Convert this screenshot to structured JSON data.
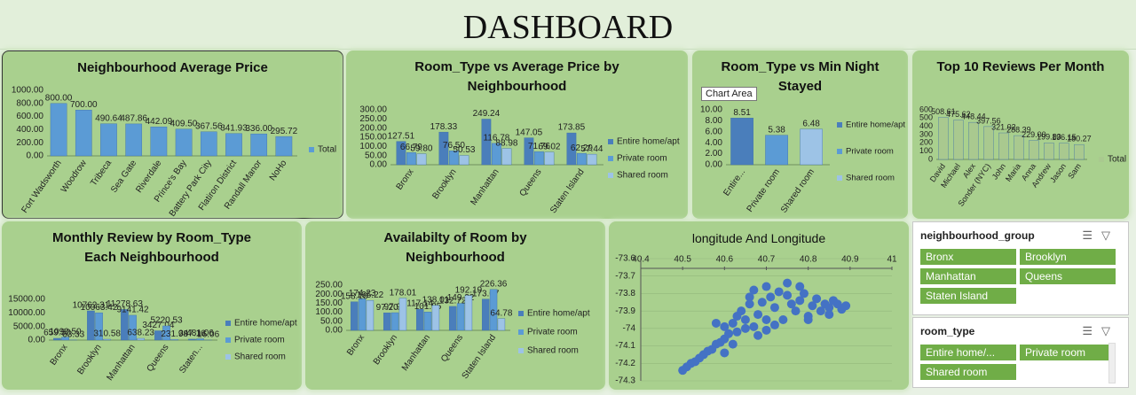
{
  "title": "DASHBOARD",
  "chart_data": [
    {
      "type": "bar",
      "title": "Neighbourhood Average Price",
      "categories": [
        "Fort Wadsworth",
        "Woodrow",
        "Tribeca",
        "Sea Gate",
        "Riverdale",
        "Prince's Bay",
        "Battery Park City",
        "Flatiron District",
        "Randall Manor",
        "NoHo"
      ],
      "series": [
        {
          "name": "Total",
          "color": "#5b9bd5",
          "values": [
            800,
            700,
            490.64,
            487.86,
            442.09,
            409.5,
            367.56,
            341.93,
            336,
            295.72
          ],
          "value_labels": [
            "800.00",
            "700.00",
            "490.64",
            "487.86",
            "442.09",
            "409.50",
            "367.56",
            "341.93",
            "336.00",
            "295.72"
          ]
        }
      ],
      "ylim": [
        0,
        1000
      ],
      "yticks": [
        {
          "value": 0,
          "label": "0.00"
        },
        {
          "value": 200,
          "label": "200.00"
        },
        {
          "value": 400,
          "label": "400.00"
        },
        {
          "value": 600,
          "label": "600.00"
        },
        {
          "value": 800,
          "label": "800.00"
        },
        {
          "value": 1000,
          "label": "1000.00"
        }
      ],
      "grid": false
    },
    {
      "type": "bar",
      "title": "Room_Type vs Average Price by Neighbourhood",
      "categories": [
        "Bronx",
        "Brooklyn",
        "Manhattan",
        "Queens",
        "Staten Island"
      ],
      "series": [
        {
          "name": "Entire home/apt",
          "color": "#4a7ebb",
          "values": [
            127.51,
            178.33,
            249.24,
            147.05,
            173.85
          ],
          "value_labels": [
            "127.51",
            "178.33",
            "249.24",
            "147.05",
            "173.85"
          ]
        },
        {
          "name": "Private room",
          "color": "#5b9bd5",
          "values": [
            66.79,
            76.5,
            116.78,
            71.76,
            62.29
          ],
          "value_labels": [
            "66.79",
            "76.50",
            "116.78",
            "71.76",
            "62.29"
          ]
        },
        {
          "name": "Shared room",
          "color": "#9dc3e6",
          "values": [
            59.8,
            50.53,
            88.98,
            69.02,
            57.44
          ],
          "value_labels": [
            "59.80",
            "50.53",
            "88.98",
            "69.02",
            "57.44"
          ]
        }
      ],
      "ylim": [
        0,
        300
      ],
      "yticks": [
        {
          "value": 0,
          "label": "0.00"
        },
        {
          "value": 50,
          "label": "50.00"
        },
        {
          "value": 100,
          "label": "100.00"
        },
        {
          "value": 150,
          "label": "150.00"
        },
        {
          "value": 200,
          "label": "200.00"
        },
        {
          "value": 250,
          "label": "250.00"
        },
        {
          "value": 300,
          "label": "300.00"
        }
      ],
      "grid": false
    },
    {
      "type": "bar",
      "title": "Room_Type vs Min Night Stayed",
      "tooltip": "Chart Area",
      "categories": [
        "Entire...",
        "Private room",
        "Shared room"
      ],
      "series": [
        {
          "colors": [
            "#4a7ebb",
            "#5b9bd5",
            "#9dc3e6"
          ],
          "values": [
            8.51,
            5.38,
            6.48
          ],
          "value_labels": [
            "8.51",
            "5.38",
            "6.48"
          ]
        }
      ],
      "legend": [
        "Entire home/apt",
        "Private room",
        "Shared room"
      ],
      "ylim": [
        0,
        10
      ],
      "yticks": [
        {
          "value": 0,
          "label": "0.00"
        },
        {
          "value": 2,
          "label": "2.00"
        },
        {
          "value": 4,
          "label": "4.00"
        },
        {
          "value": 6,
          "label": "6.00"
        },
        {
          "value": 8,
          "label": "8.00"
        },
        {
          "value": 10,
          "label": "10.00"
        }
      ],
      "grid": false
    },
    {
      "type": "bar",
      "title": "Top 10 Reviews Per Month",
      "categories": [
        "David",
        "Michael",
        "Alex",
        "Sonder (NYC)",
        "John",
        "Maria",
        "Anna",
        "Andrew",
        "Jason",
        "Sam"
      ],
      "series": [
        {
          "name": "Total",
          "color": "#a9c98f",
          "values": [
            508.61,
            475.62,
            448.44,
            397.56,
            321.02,
            288.39,
            229,
            199.83,
            196.15,
            180.27
          ],
          "value_labels": [
            "508.61",
            "475.62",
            "448.44",
            "397.56",
            "321.02",
            "288.39",
            "229.00",
            "199.83",
            "196.15",
            "180.27"
          ]
        }
      ],
      "ylim": [
        0,
        600
      ],
      "yticks": [
        0,
        100,
        200,
        300,
        400,
        500,
        600
      ],
      "grid": false
    },
    {
      "type": "bar",
      "title": "Monthly Review by Room_Type Each Neighbourhood",
      "categories": [
        "Bronx",
        "Brooklyn",
        "Manhattan",
        "Queens",
        "Staten..."
      ],
      "series": [
        {
          "name": "Entire home/apt",
          "color": "#4a7ebb",
          "values": [
            659.5,
            10762.31,
            11278.63,
            3427.04,
            347.16
          ],
          "value_labels": [
            "659.50",
            "10762.31",
            "11278.63",
            "3427.04",
            "347.16"
          ]
        },
        {
          "name": "Private room",
          "color": "#5b9bd5",
          "values": [
            1090.5,
            10063.42,
            9141.42,
            5220.53,
            481.06
          ],
          "value_labels": [
            "1090.50",
            "10063.42",
            "9141.42",
            "5220.53",
            "481.06"
          ]
        },
        {
          "name": "Shared room",
          "color": "#9dc3e6",
          "values": [
            63.33,
            310.58,
            638.23,
            231.98,
            16.06
          ],
          "value_labels": [
            "63.33",
            "310.58",
            "638.23",
            "231.98",
            "16.06"
          ]
        }
      ],
      "ylim": [
        0,
        15000
      ],
      "yticks": [
        {
          "value": 0,
          "label": "0.00"
        },
        {
          "value": 5000,
          "label": "5000.00"
        },
        {
          "value": 10000,
          "label": "10000.00"
        },
        {
          "value": 15000,
          "label": "15000.00"
        }
      ],
      "grid": false
    },
    {
      "type": "bar",
      "title": "Availabilty of Room by Neighbourhood",
      "categories": [
        "Bronx",
        "Brooklyn",
        "Manhattan",
        "Queens",
        "Staten Island"
      ],
      "series": [
        {
          "name": "Entire home/apt",
          "color": "#4a7ebb",
          "values": [
            158.1,
            97.2,
            117.14,
            132.72,
            173.07
          ],
          "value_labels": [
            "158.10",
            "97.20",
            "117.14",
            "132.72",
            "173.07"
          ]
        },
        {
          "name": "Private room",
          "color": "#5b9bd5",
          "values": [
            174.23,
            97.92,
            101.85,
            149.22,
            226.36
          ],
          "value_labels": [
            "174.23",
            "97.92",
            "101.85",
            "149.22",
            "226.36"
          ]
        },
        {
          "name": "Shared room",
          "color": "#9dc3e6",
          "values": [
            165.22,
            178.01,
            138.01,
            192.19,
            64.78
          ],
          "value_labels": [
            "165.22",
            "178.01",
            "138.01",
            "192.19",
            "64.78"
          ]
        }
      ],
      "ylim": [
        0,
        250
      ],
      "yticks": [
        {
          "value": 0,
          "label": "0.00"
        },
        {
          "value": 50,
          "label": "50.00"
        },
        {
          "value": 100,
          "label": "100.00"
        },
        {
          "value": 150,
          "label": "150.00"
        },
        {
          "value": 200,
          "label": "200.00"
        },
        {
          "value": 250,
          "label": "250.00"
        }
      ],
      "grid": false
    },
    {
      "type": "scatter",
      "title": "longitude And Longitude",
      "color": "#4472c4",
      "x": [
        40.5,
        40.51,
        40.52,
        40.53,
        40.54,
        40.55,
        40.56,
        40.57,
        40.58,
        40.59,
        40.6,
        40.6,
        40.61,
        40.62,
        40.63,
        40.63,
        40.64,
        40.65,
        40.66,
        40.67,
        40.67,
        40.68,
        40.69,
        40.7,
        40.7,
        40.71,
        40.72,
        40.73,
        40.74,
        40.75,
        40.76,
        40.77,
        40.78,
        40.79,
        40.8,
        40.81,
        40.82,
        40.83,
        40.84,
        40.85,
        40.86,
        40.87,
        40.88,
        40.89,
        40.6,
        40.65,
        40.7,
        40.75,
        40.8,
        40.72,
        40.68,
        40.62,
        40.58,
        40.85,
        40.78,
        40.66
      ],
      "y": [
        -74.24,
        -74.22,
        -74.2,
        -74.19,
        -74.17,
        -74.15,
        -74.13,
        -74.12,
        -74.09,
        -74.08,
        -74.06,
        -73.99,
        -74.03,
        -73.97,
        -74.02,
        -73.93,
        -73.9,
        -73.95,
        -73.86,
        -73.99,
        -73.78,
        -73.92,
        -73.85,
        -73.95,
        -73.76,
        -73.82,
        -73.88,
        -73.79,
        -73.95,
        -73.81,
        -73.86,
        -73.9,
        -73.84,
        -73.8,
        -73.93,
        -73.87,
        -73.83,
        -73.9,
        -73.86,
        -73.88,
        -73.84,
        -73.86,
        -73.89,
        -73.87,
        -74.14,
        -74.0,
        -74.01,
        -73.74,
        -73.95,
        -73.98,
        -74.04,
        -74.09,
        -73.97,
        -73.92,
        -73.76,
        -73.82
      ],
      "xlim": [
        40.4,
        41
      ],
      "xticks": [
        40.4,
        40.5,
        40.6,
        40.7,
        40.8,
        40.9,
        41
      ],
      "ylim": [
        -74.3,
        -73.6
      ],
      "yticks": [
        -73.6,
        -73.7,
        -73.8,
        -73.9,
        -74,
        -74.1,
        -74.2,
        -74.3
      ],
      "grid": true
    }
  ],
  "slicers": [
    {
      "title": "neighbourhood_group",
      "items": [
        "Bronx",
        "Brooklyn",
        "Manhattan",
        "Queens",
        "Staten Island"
      ]
    },
    {
      "title": "room_type",
      "items": [
        "Entire home/...",
        "Private room",
        "Shared room"
      ]
    }
  ]
}
